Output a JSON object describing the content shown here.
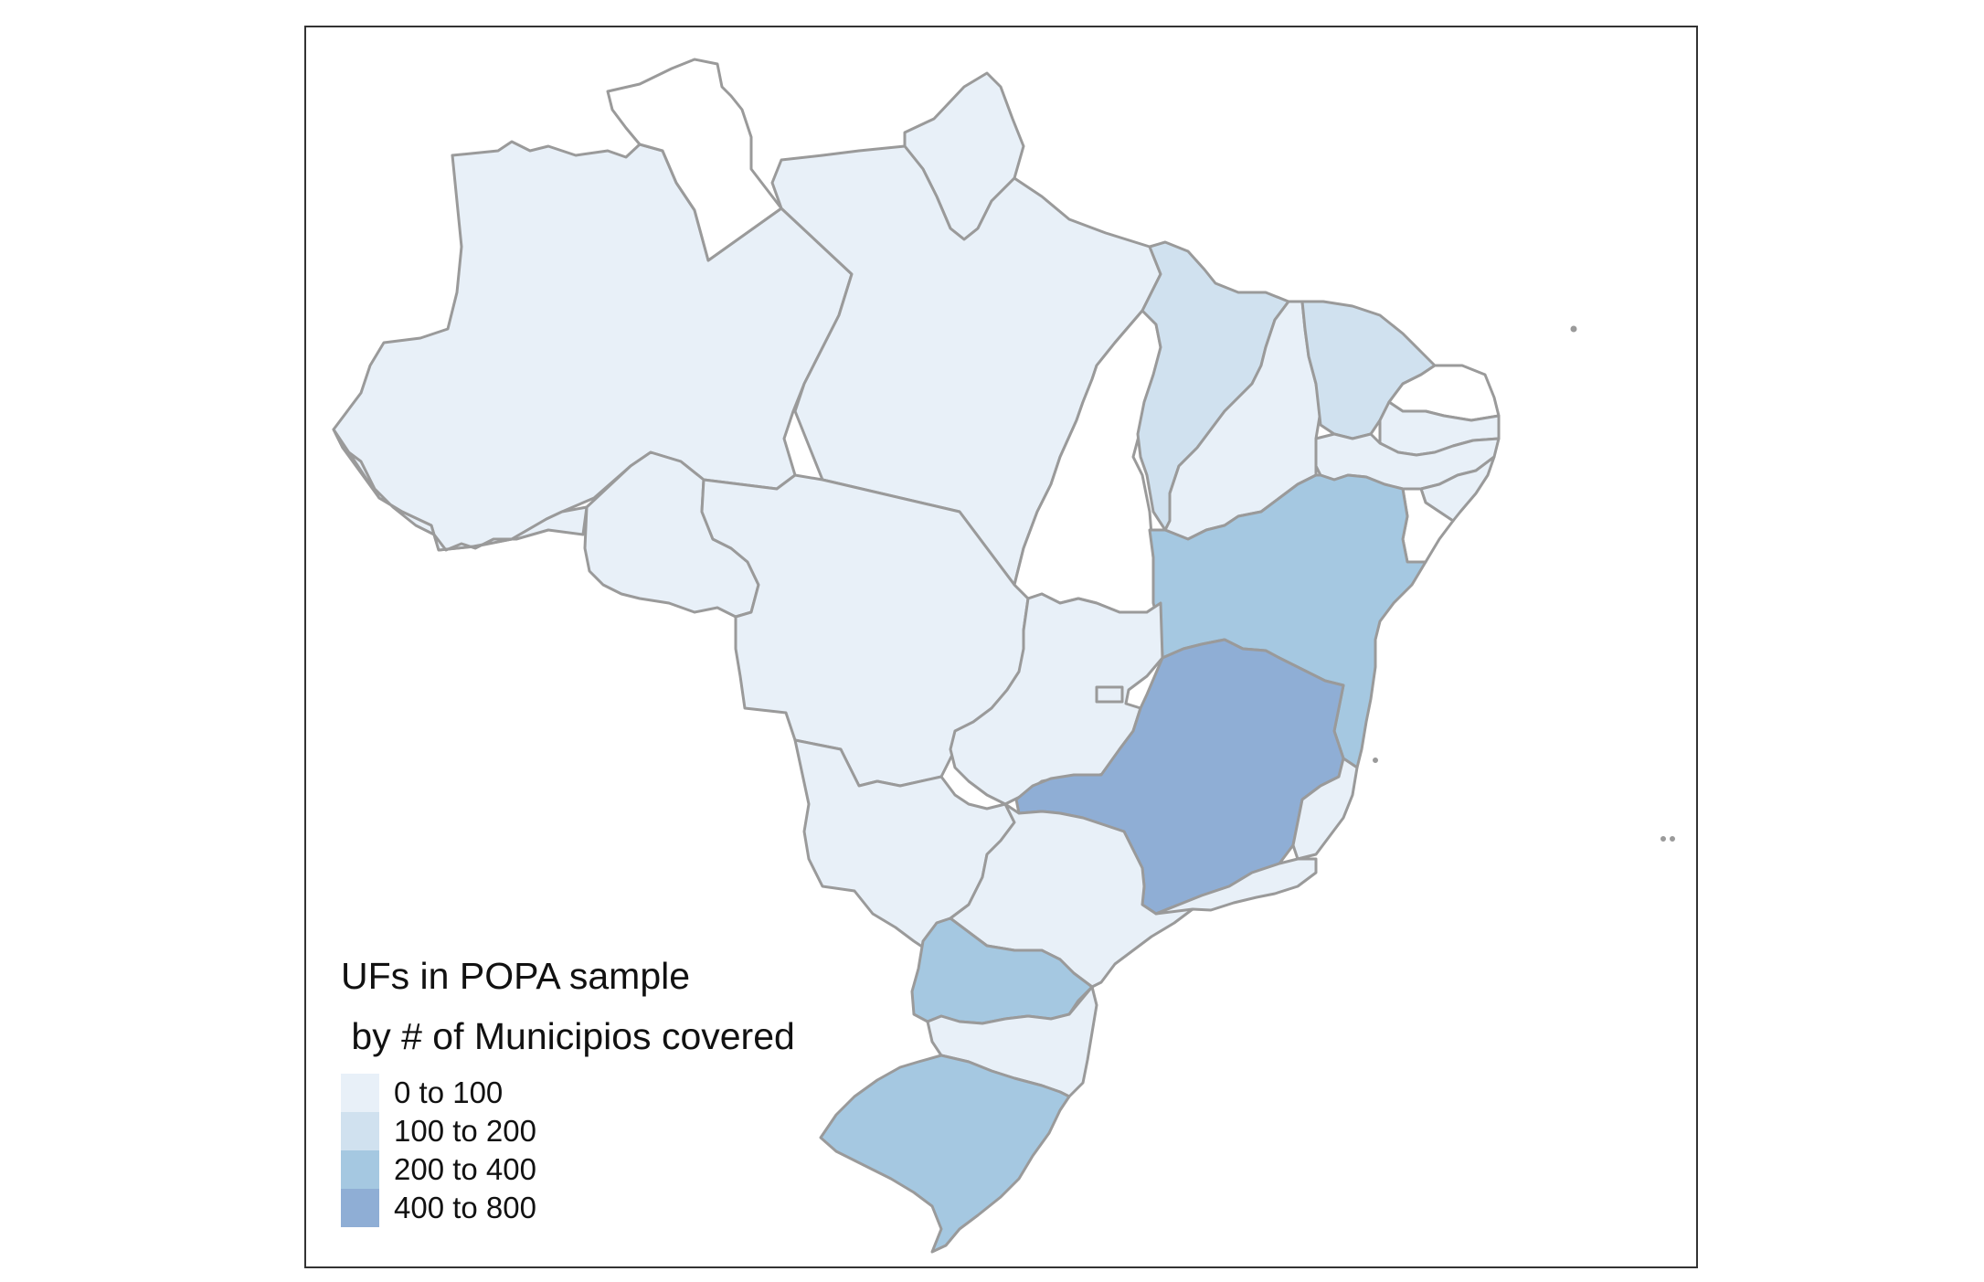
{
  "legend": {
    "title_line1": "UFs in POPA sample",
    "title_line2": " by # of Municipios covered",
    "items": [
      {
        "label": "0 to 100",
        "color": "#e8f0f8"
      },
      {
        "label": "100 to 200",
        "color": "#d0e1ef"
      },
      {
        "label": "200 to 400",
        "color": "#a5c8e1"
      },
      {
        "label": "400 to 800",
        "color": "#8faed5"
      }
    ]
  },
  "colors": {
    "no_data": "#ffffff",
    "border": "#9a9a9a",
    "frame": "#333333"
  },
  "regions": [
    {
      "id": "AM",
      "class": 0
    },
    {
      "id": "RR",
      "class": null
    },
    {
      "id": "AP",
      "class": 0
    },
    {
      "id": "PA",
      "class": 0
    },
    {
      "id": "AC",
      "class": 0
    },
    {
      "id": "RO",
      "class": 0
    },
    {
      "id": "MT",
      "class": 0
    },
    {
      "id": "TO",
      "class": null
    },
    {
      "id": "MA",
      "class": 1
    },
    {
      "id": "PI",
      "class": 0
    },
    {
      "id": "CE",
      "class": 1
    },
    {
      "id": "RN",
      "class": null
    },
    {
      "id": "PB",
      "class": 0
    },
    {
      "id": "PE",
      "class": 0
    },
    {
      "id": "AL",
      "class": 0
    },
    {
      "id": "SE",
      "class": null
    },
    {
      "id": "BA",
      "class": 2
    },
    {
      "id": "GO",
      "class": 0
    },
    {
      "id": "DF",
      "class": 0
    },
    {
      "id": "MG",
      "class": 3
    },
    {
      "id": "ES",
      "class": 0
    },
    {
      "id": "MS",
      "class": 0
    },
    {
      "id": "SP",
      "class": 0
    },
    {
      "id": "RJ",
      "class": 0
    },
    {
      "id": "PR",
      "class": 2
    },
    {
      "id": "SC",
      "class": 0
    },
    {
      "id": "RS",
      "class": 2
    }
  ]
}
